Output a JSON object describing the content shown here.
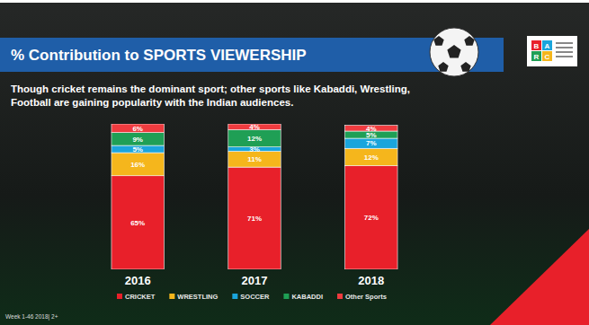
{
  "chart_data": {
    "type": "bar",
    "stacked": true,
    "title": "% Contribution to SPORTS VIEWERSHIP",
    "subtitle": "Though cricket remains the dominant sport; other sports like Kabaddi, Wrestling, Football are gaining popularity with the Indian audiences.",
    "footnote": "Week 1-46 2018| 2+",
    "logo": [
      "B",
      "A",
      "R",
      "C"
    ],
    "categories": [
      "2016",
      "2017",
      "2018"
    ],
    "ylim": [
      0,
      101
    ],
    "tick_labels": "x",
    "grid": false,
    "legend": "bottom",
    "data_labels": true,
    "series": [
      {
        "name": "CRICKET",
        "color": "#e8202a",
        "values": [
          65,
          71,
          72
        ],
        "value_labels": [
          "65%",
          "71%",
          "72%"
        ]
      },
      {
        "name": "WRESTLING",
        "color": "#f5b61c",
        "values": [
          16,
          11,
          12
        ],
        "value_labels": [
          "16%",
          "11%",
          "12%"
        ]
      },
      {
        "name": "SOCCER",
        "color": "#1aa5dc",
        "values": [
          5,
          3,
          7
        ],
        "value_labels": [
          "5%",
          "3%",
          "7%"
        ]
      },
      {
        "name": "KABADDI",
        "color": "#1f9f55",
        "values": [
          9,
          12,
          5
        ],
        "value_labels": [
          "9%",
          "12%",
          "5%"
        ]
      },
      {
        "name": "Other Sports",
        "color": "#ef3b3f",
        "values": [
          6,
          4,
          4
        ],
        "value_labels": [
          "6%",
          "4%",
          "4%"
        ]
      }
    ]
  }
}
